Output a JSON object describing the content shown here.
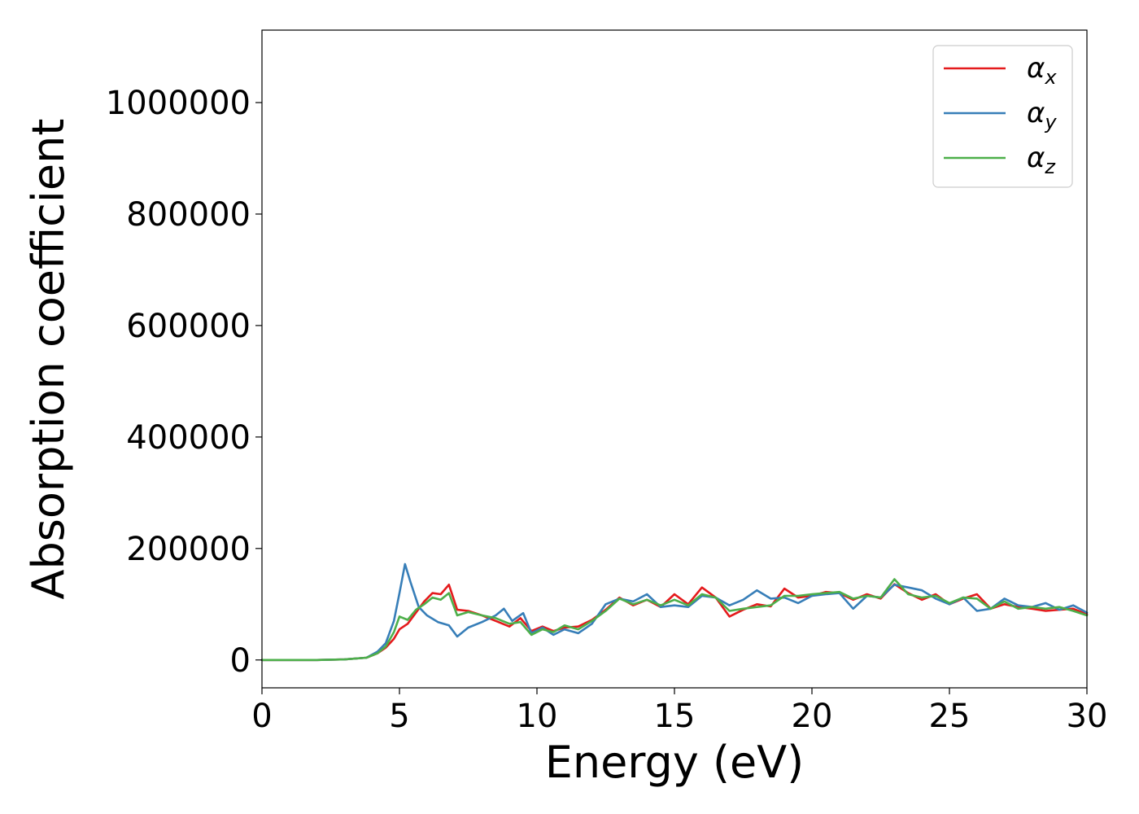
{
  "chart_data": {
    "type": "line",
    "title": "",
    "xlabel": "Energy (eV)",
    "ylabel": "Absorption coefficient",
    "xlim": [
      0,
      30
    ],
    "ylim": [
      -50000,
      1130000
    ],
    "x_ticks": [
      0,
      5,
      10,
      15,
      20,
      25,
      30
    ],
    "x_tick_labels": [
      "0",
      "5",
      "10",
      "15",
      "20",
      "25",
      "30"
    ],
    "y_ticks": [
      0,
      200000,
      400000,
      600000,
      800000,
      1000000
    ],
    "y_tick_labels": [
      "0",
      "200000",
      "400000",
      "600000",
      "800000",
      "1000000"
    ],
    "grid": false,
    "legend_placement": "top-right",
    "series": [
      {
        "name": "α_x",
        "legend_base": "α",
        "legend_sub": "x",
        "color": "#e41a1c",
        "x": [
          0,
          1,
          2,
          3,
          3.8,
          4.2,
          4.5,
          4.8,
          5.0,
          5.3,
          5.6,
          5.9,
          6.2,
          6.5,
          6.8,
          7.1,
          7.5,
          8.0,
          8.5,
          9.0,
          9.4,
          9.8,
          10.2,
          10.6,
          11.0,
          11.5,
          12.0,
          12.5,
          13.0,
          13.5,
          14.0,
          14.5,
          15.0,
          15.5,
          16.0,
          16.5,
          17.0,
          17.5,
          18.0,
          18.5,
          19.0,
          19.5,
          20.0,
          20.5,
          21.0,
          21.5,
          22.0,
          22.5,
          23.0,
          23.5,
          24.0,
          24.5,
          25.0,
          25.5,
          26.0,
          26.5,
          27.0,
          27.5,
          28.0,
          28.5,
          29.0,
          29.5,
          30.0
        ],
        "values": [
          0,
          0,
          0,
          1000,
          4000,
          12000,
          22000,
          38000,
          55000,
          65000,
          85000,
          105000,
          120000,
          118000,
          135000,
          90000,
          88000,
          80000,
          70000,
          60000,
          75000,
          52000,
          60000,
          52000,
          58000,
          60000,
          72000,
          90000,
          112000,
          98000,
          108000,
          95000,
          118000,
          100000,
          130000,
          112000,
          78000,
          90000,
          100000,
          96000,
          128000,
          112000,
          115000,
          122000,
          120000,
          108000,
          118000,
          110000,
          136000,
          120000,
          108000,
          118000,
          100000,
          110000,
          118000,
          92000,
          100000,
          95000,
          92000,
          88000,
          90000,
          92000,
          82000
        ]
      },
      {
        "name": "α_y",
        "legend_base": "α",
        "legend_sub": "y",
        "color": "#377eb8",
        "x": [
          0,
          1,
          2,
          3,
          3.8,
          4.2,
          4.5,
          4.8,
          5.0,
          5.2,
          5.4,
          5.7,
          6.0,
          6.4,
          6.8,
          7.1,
          7.5,
          8.0,
          8.5,
          8.8,
          9.1,
          9.5,
          9.8,
          10.2,
          10.6,
          11.0,
          11.5,
          12.0,
          12.5,
          13.0,
          13.5,
          14.0,
          14.5,
          15.0,
          15.5,
          16.0,
          16.5,
          17.0,
          17.5,
          18.0,
          18.5,
          19.0,
          19.5,
          20.0,
          20.5,
          21.0,
          21.5,
          22.0,
          22.5,
          23.0,
          23.5,
          24.0,
          24.5,
          25.0,
          25.5,
          26.0,
          26.5,
          27.0,
          27.5,
          28.0,
          28.5,
          29.0,
          29.5,
          30.0
        ],
        "values": [
          0,
          0,
          0,
          1000,
          4000,
          15000,
          30000,
          70000,
          120000,
          172000,
          140000,
          95000,
          80000,
          68000,
          62000,
          42000,
          58000,
          68000,
          80000,
          92000,
          70000,
          84000,
          48000,
          58000,
          45000,
          55000,
          48000,
          65000,
          100000,
          110000,
          105000,
          118000,
          95000,
          98000,
          95000,
          115000,
          112000,
          98000,
          108000,
          125000,
          110000,
          112000,
          102000,
          115000,
          118000,
          120000,
          92000,
          115000,
          112000,
          135000,
          130000,
          125000,
          110000,
          100000,
          112000,
          88000,
          92000,
          110000,
          98000,
          95000,
          102000,
          90000,
          98000,
          85000
        ]
      },
      {
        "name": "α_z",
        "legend_base": "α",
        "legend_sub": "z",
        "color": "#4daf4a",
        "x": [
          0,
          1,
          2,
          3,
          3.8,
          4.2,
          4.5,
          4.8,
          5.0,
          5.3,
          5.6,
          5.9,
          6.2,
          6.5,
          6.8,
          7.1,
          7.5,
          8.0,
          8.5,
          9.0,
          9.4,
          9.8,
          10.2,
          10.6,
          11.0,
          11.5,
          12.0,
          12.5,
          13.0,
          13.5,
          14.0,
          14.5,
          15.0,
          15.5,
          16.0,
          16.5,
          17.0,
          17.5,
          18.0,
          18.5,
          19.0,
          19.5,
          20.0,
          20.5,
          21.0,
          21.5,
          22.0,
          22.5,
          23.0,
          23.5,
          24.0,
          24.5,
          25.0,
          25.5,
          26.0,
          26.5,
          27.0,
          27.5,
          28.0,
          28.5,
          29.0,
          29.5,
          30.0
        ],
        "values": [
          0,
          0,
          0,
          1000,
          4000,
          12000,
          24000,
          50000,
          78000,
          72000,
          90000,
          100000,
          112000,
          108000,
          120000,
          80000,
          86000,
          80000,
          75000,
          65000,
          68000,
          45000,
          55000,
          50000,
          62000,
          55000,
          70000,
          88000,
          110000,
          100000,
          108000,
          98000,
          108000,
          98000,
          118000,
          112000,
          88000,
          92000,
          95000,
          98000,
          115000,
          115000,
          118000,
          120000,
          122000,
          110000,
          115000,
          112000,
          145000,
          118000,
          112000,
          115000,
          102000,
          112000,
          110000,
          92000,
          105000,
          92000,
          95000,
          92000,
          95000,
          88000,
          80000
        ]
      }
    ]
  }
}
